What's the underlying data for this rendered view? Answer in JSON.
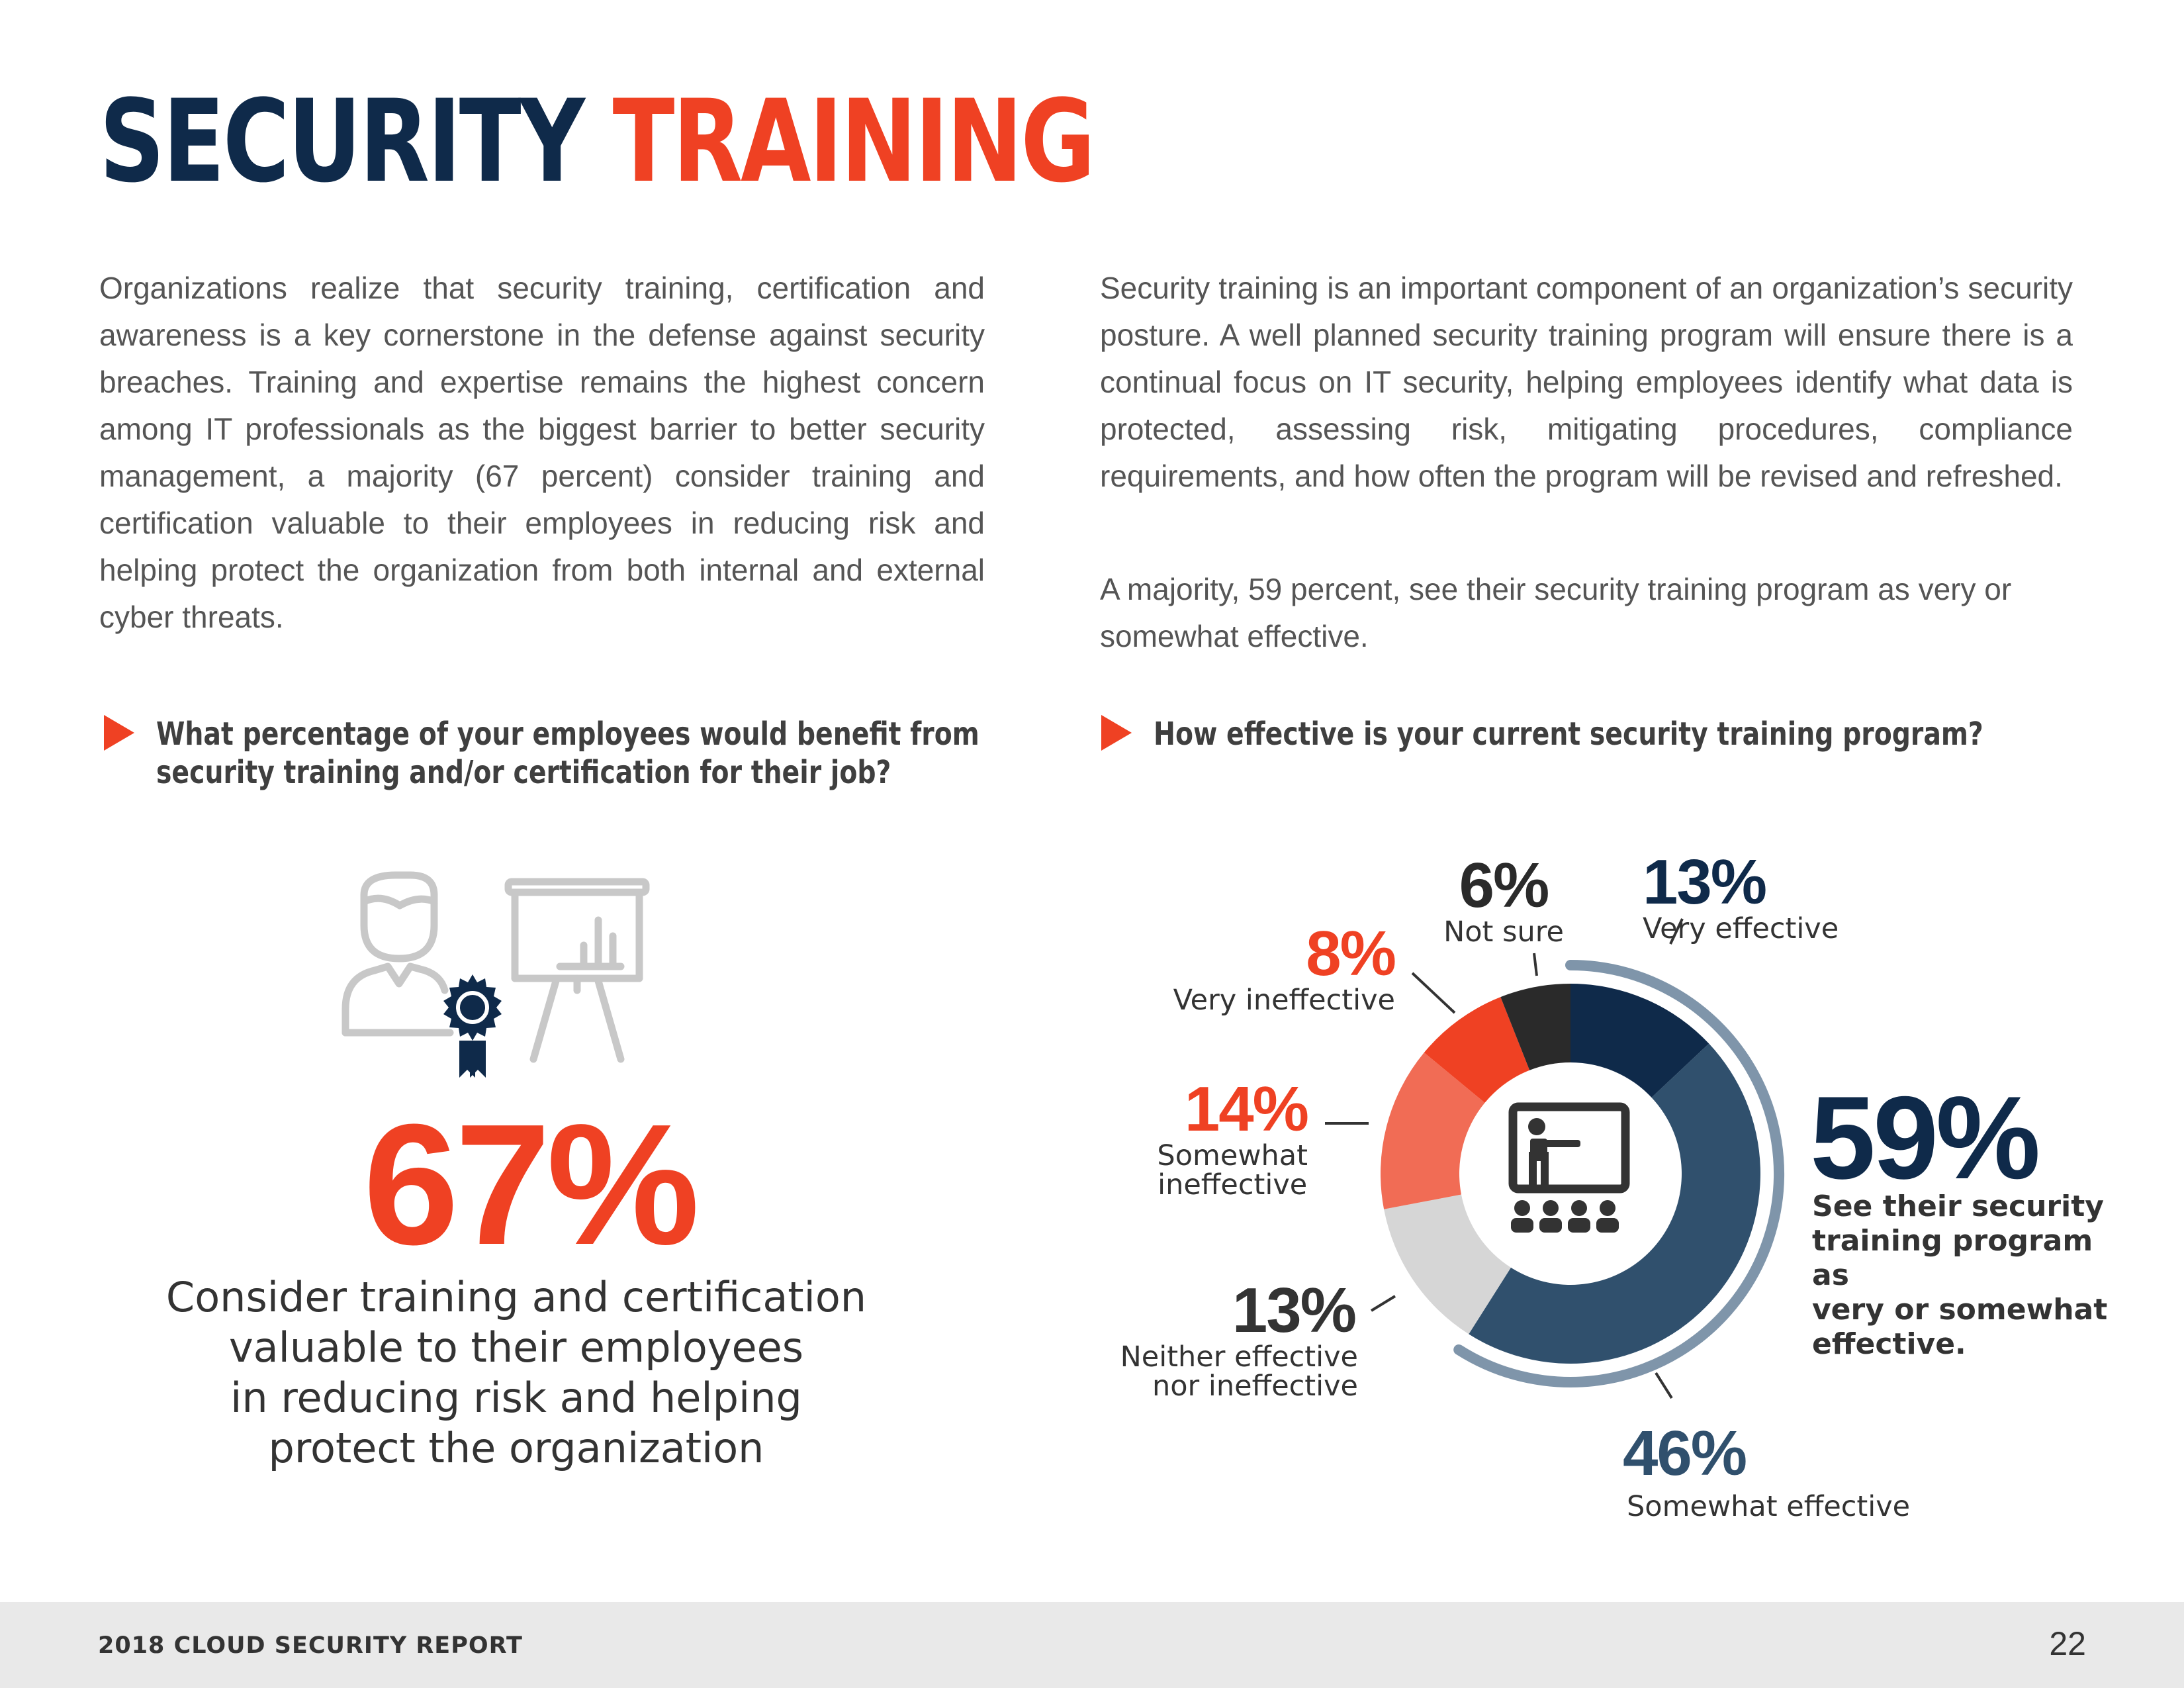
{
  "header": {
    "title_part1": "SECURITY",
    "title_part2": "TRAINING"
  },
  "body": {
    "left_paragraph": "Organizations realize that security training, certification and awareness is a key cornerstone in the defense against security breaches.  Training and expertise remains the highest concern among IT professionals as the biggest barrier to better security management, a majority (67 percent) consider training and certification valuable to their employees in reducing risk and helping protect the organization from both internal and external cyber threats.",
    "right_paragraph_1": "Security training is an important component of an organization’s security posture. A well planned security training program will ensure there is a continual focus on IT security, helping employees identify what data is protected, assessing risk, mitigating procedures, compliance requirements, and how often the program will be revised and refreshed.",
    "right_paragraph_2": "A majority, 59 percent, see their security training program as very or somewhat effective."
  },
  "question1": {
    "line1": "What percentage of your employees would benefit from",
    "line2": "security training and/or certification for their job?",
    "stat_value": "67%",
    "caption_lines": [
      "Consider training and certification",
      "valuable to their employees",
      "in reducing risk and helping",
      "protect the organization"
    ]
  },
  "question2": {
    "text": "How effective is your current security training program?"
  },
  "chart_data": {
    "type": "pie",
    "title": "How effective is your current security training program?",
    "categories": [
      "Very effective",
      "Somewhat effective",
      "Neither effective nor ineffective",
      "Somewhat ineffective",
      "Very ineffective",
      "Not sure"
    ],
    "values": [
      13,
      46,
      13,
      14,
      8,
      6
    ],
    "colors": [
      "#0f2a4a",
      "#30506d",
      "#d6d6d6",
      "#f16c55",
      "#ef4123",
      "#2a2a2a"
    ],
    "labels": {
      "very_effective": {
        "pct": "13%",
        "text": "Very effective"
      },
      "somewhat_effective": {
        "pct": "46%",
        "text": "Somewhat effective"
      },
      "neither": {
        "pct": "13%",
        "line1": "Neither effective",
        "line2": "nor ineffective"
      },
      "somewhat_ineffective": {
        "pct": "14%",
        "line1": "Somewhat",
        "line2": "ineffective"
      },
      "very_ineffective": {
        "pct": "8%",
        "text": "Very ineffective"
      },
      "not_sure": {
        "pct": "6%",
        "text": "Not sure"
      }
    },
    "highlight_color": "#7f95aa",
    "summary": {
      "pct": "59%",
      "lines": [
        "See their security",
        "training program as",
        "very or somewhat",
        "effective."
      ]
    }
  },
  "icons": {
    "illustration": "employee-certificate-presentation-icon",
    "chart_center": "classroom-presentation-icon",
    "bullet": "triangle-arrow-icon"
  },
  "footer": {
    "report_title": "2018 CLOUD SECURITY REPORT",
    "page_number": "22"
  }
}
